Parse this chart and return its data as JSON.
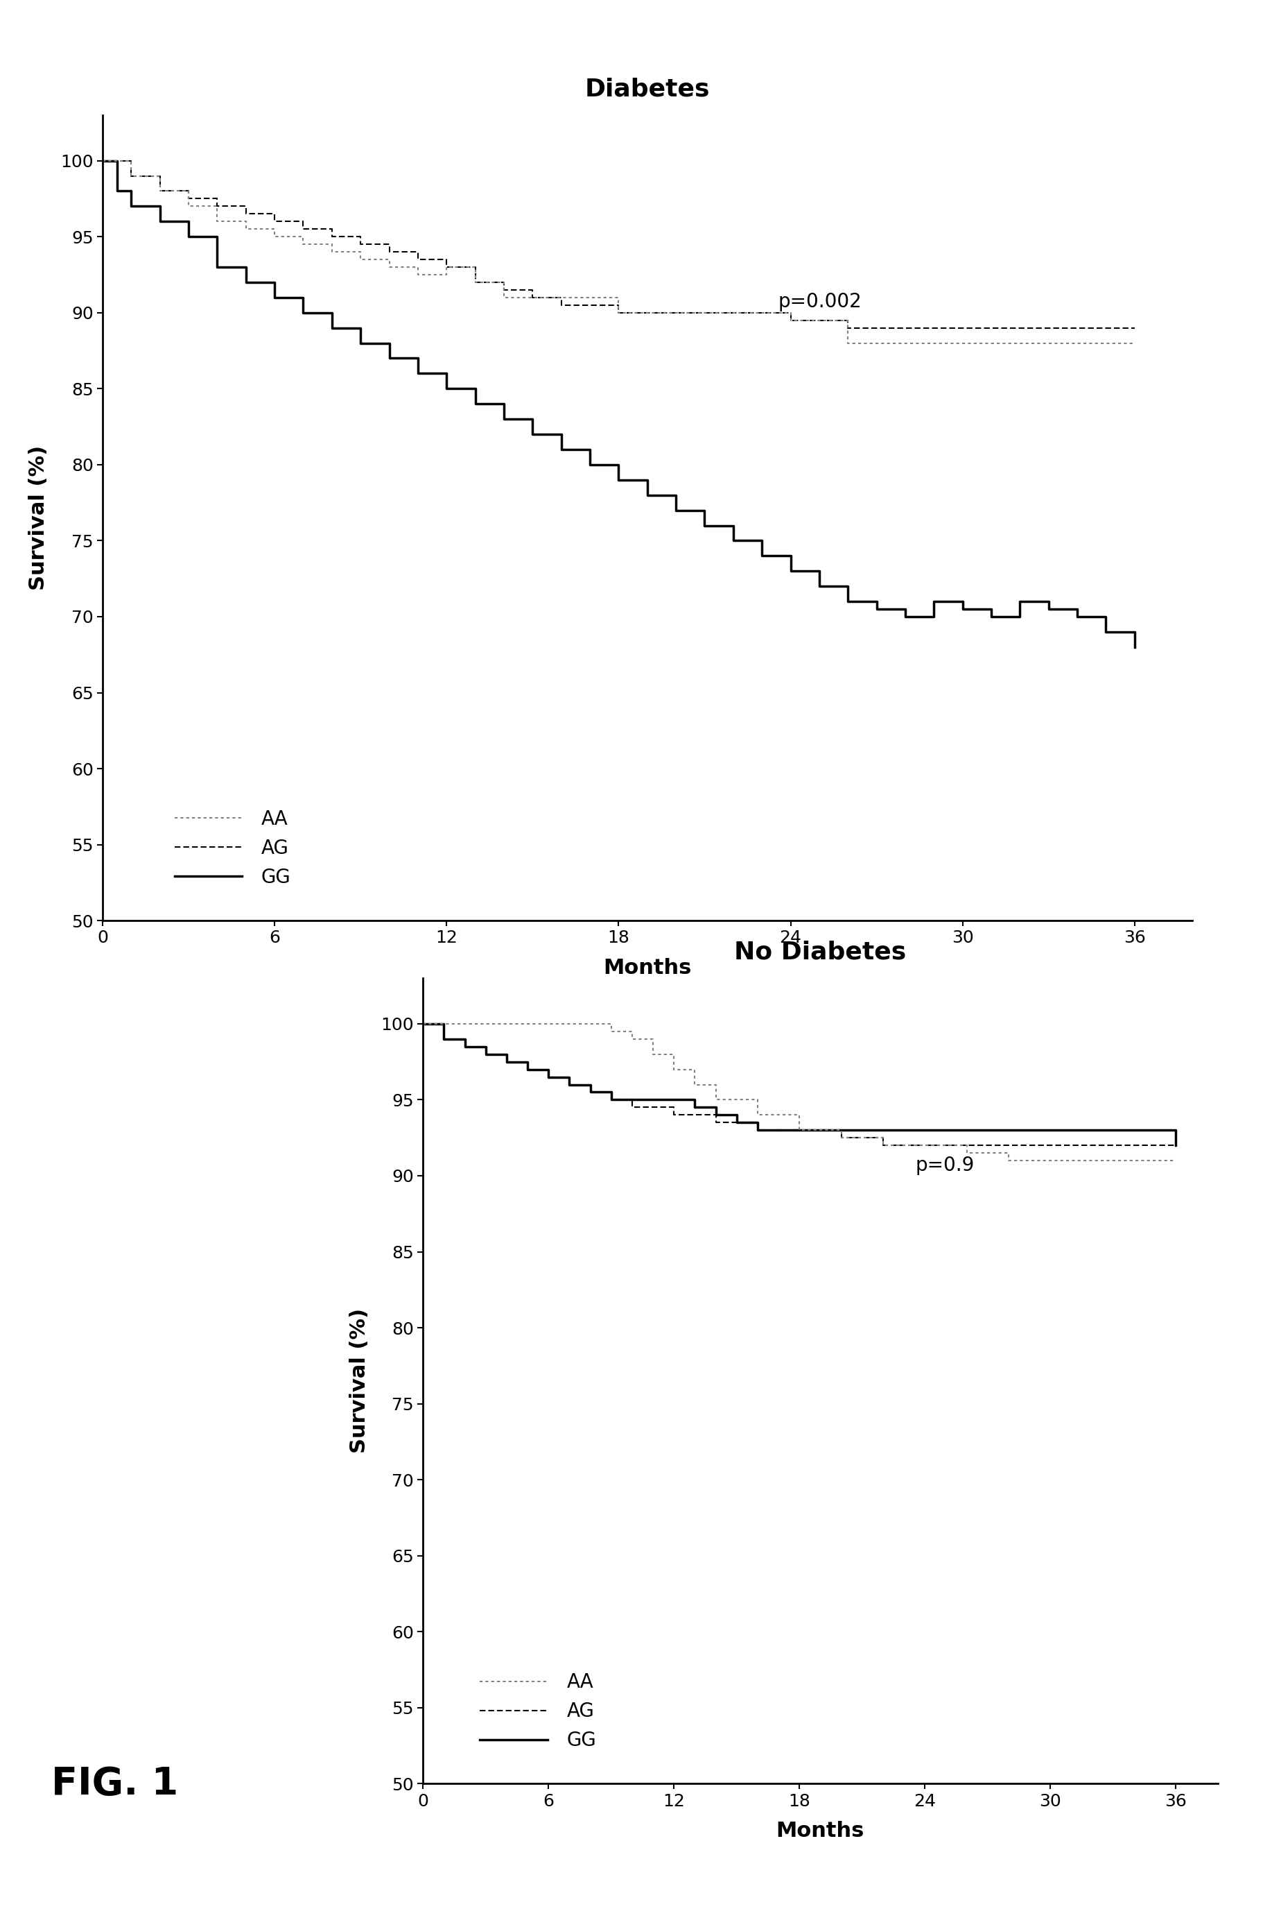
{
  "fig_width": 18.49,
  "fig_height": 27.65,
  "bg_color": "#ffffff",
  "top_title": "Diabetes",
  "bottom_title": "No Diabetes",
  "xlabel": "Months",
  "ylabel": "Survival (%)",
  "fig_label": "FIG. 1",
  "top_pvalue": "p=0.002",
  "bottom_pvalue": "p=0.9",
  "ylim": [
    50,
    103
  ],
  "xlim": [
    0,
    38
  ],
  "yticks": [
    50,
    55,
    60,
    65,
    70,
    75,
    80,
    85,
    90,
    95,
    100
  ],
  "xticks": [
    0,
    6,
    12,
    18,
    24,
    30,
    36
  ],
  "top_AA_x": [
    0,
    1,
    2,
    3,
    4,
    5,
    6,
    7,
    8,
    9,
    10,
    11,
    12,
    13,
    14,
    16,
    18,
    20,
    22,
    24,
    26,
    28,
    30,
    32,
    34,
    36
  ],
  "top_AA_y": [
    100,
    99,
    98,
    97,
    96,
    95.5,
    95,
    94.5,
    94,
    93.5,
    93,
    92.5,
    93,
    92,
    91,
    91,
    90,
    90,
    90,
    89.5,
    88,
    88,
    88,
    88,
    88,
    88
  ],
  "top_AG_x": [
    0,
    1,
    2,
    3,
    4,
    5,
    6,
    7,
    8,
    9,
    10,
    11,
    12,
    13,
    14,
    15,
    16,
    18,
    20,
    22,
    24,
    26,
    28,
    30,
    32,
    34,
    36
  ],
  "top_AG_y": [
    100,
    99,
    98,
    97.5,
    97,
    96.5,
    96,
    95.5,
    95,
    94.5,
    94,
    93.5,
    93,
    92,
    91.5,
    91,
    90.5,
    90,
    90,
    90,
    89.5,
    89,
    89,
    89,
    89,
    89,
    89
  ],
  "top_GG_x": [
    0,
    0.5,
    1,
    2,
    3,
    4,
    5,
    6,
    7,
    8,
    9,
    10,
    11,
    12,
    13,
    14,
    15,
    16,
    17,
    18,
    19,
    20,
    21,
    22,
    23,
    24,
    25,
    26,
    27,
    28,
    29,
    30,
    31,
    32,
    33,
    34,
    35,
    36
  ],
  "top_GG_y": [
    100,
    98,
    97,
    96,
    95,
    93,
    92,
    91,
    90,
    89,
    88,
    87,
    86,
    85,
    84,
    83,
    82,
    81,
    80,
    79,
    78,
    77,
    76,
    75,
    74,
    73,
    72,
    71,
    70.5,
    70,
    71,
    70.5,
    70,
    71,
    70.5,
    70,
    69,
    68
  ],
  "bot_AA_x": [
    0,
    1,
    2,
    3,
    4,
    5,
    6,
    7,
    8,
    9,
    10,
    11,
    12,
    13,
    14,
    16,
    18,
    20,
    22,
    24,
    26,
    28,
    30,
    32,
    34,
    36
  ],
  "bot_AA_y": [
    100,
    100,
    100,
    100,
    100,
    100,
    100,
    100,
    100,
    99.5,
    99,
    98,
    97,
    96,
    95,
    94,
    93,
    92.5,
    92,
    92,
    91.5,
    91,
    91,
    91,
    91,
    91
  ],
  "bot_AG_x": [
    0,
    1,
    2,
    3,
    4,
    5,
    6,
    7,
    8,
    9,
    10,
    12,
    14,
    16,
    18,
    20,
    22,
    24,
    26,
    28,
    30,
    32,
    34,
    36
  ],
  "bot_AG_y": [
    100,
    99,
    98.5,
    98,
    97.5,
    97,
    96.5,
    96,
    95.5,
    95,
    94.5,
    94,
    93.5,
    93,
    93,
    92.5,
    92,
    92,
    92,
    92,
    92,
    92,
    92,
    92
  ],
  "bot_GG_x": [
    0,
    1,
    2,
    3,
    4,
    5,
    6,
    7,
    8,
    9,
    10,
    11,
    12,
    13,
    14,
    15,
    16,
    18,
    20,
    22,
    24,
    26,
    28,
    30,
    32,
    34,
    36
  ],
  "bot_GG_y": [
    100,
    99,
    98.5,
    98,
    97.5,
    97,
    96.5,
    96,
    95.5,
    95,
    95,
    95,
    95,
    94.5,
    94,
    93.5,
    93,
    93,
    93,
    93,
    93,
    93,
    93,
    93,
    93,
    93,
    92
  ]
}
